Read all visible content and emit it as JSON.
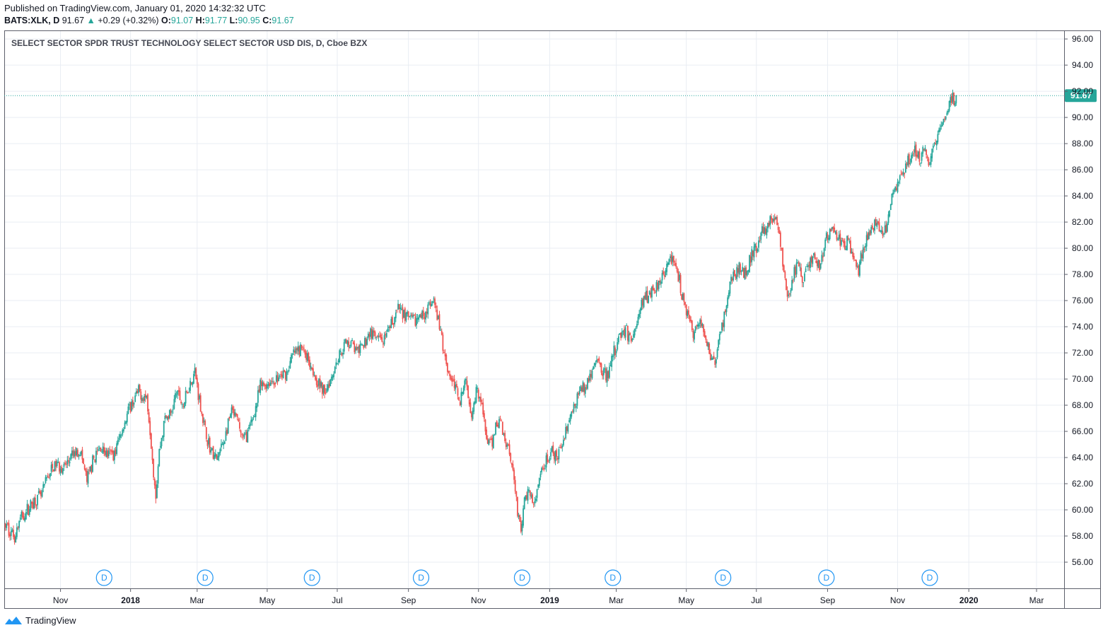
{
  "header": {
    "published": "Published on TradingView.com, January 01, 2020 14:32:32 UTC",
    "symbol": "BATS:XLK, D",
    "last": "91.67",
    "change": "+0.29 (+0.32%)",
    "o_label": "O:",
    "o_value": "91.07",
    "h_label": "H:",
    "h_value": "91.77",
    "l_label": "L:",
    "l_value": "90.95",
    "c_label": "C:",
    "c_value": "91.67"
  },
  "footer": {
    "brand": "TradingView"
  },
  "colors": {
    "up": "#26a69a",
    "down": "#ef5350",
    "grid": "#e9edf3",
    "price_line": "#26a69a",
    "dividend_marker": "#2196f3"
  },
  "chart_data": {
    "type": "candlestick",
    "title": "SELECT SECTOR SPDR TRUST TECHNOLOGY SELECT SECTOR USD DIS, D, Cboe BZX",
    "ylim": [
      54,
      96.6
    ],
    "y_ticks": [
      "96.00",
      "94.00",
      "92.00",
      "90.00",
      "88.00",
      "86.00",
      "84.00",
      "82.00",
      "80.00",
      "78.00",
      "76.00",
      "74.00",
      "72.00",
      "70.00",
      "68.00",
      "66.00",
      "64.00",
      "62.00",
      "60.00",
      "58.00",
      "56.00"
    ],
    "x_ticks": [
      {
        "label": "Nov",
        "bold": false,
        "t": 29
      },
      {
        "label": "2018",
        "bold": true,
        "t": 90
      },
      {
        "label": "Mar",
        "bold": false,
        "t": 148
      },
      {
        "label": "May",
        "bold": false,
        "t": 209
      },
      {
        "label": "Jul",
        "bold": false,
        "t": 270
      },
      {
        "label": "Sep",
        "bold": false,
        "t": 332
      },
      {
        "label": "Nov",
        "bold": false,
        "t": 393
      },
      {
        "label": "2019",
        "bold": true,
        "t": 455
      },
      {
        "label": "Mar",
        "bold": false,
        "t": 513
      },
      {
        "label": "May",
        "bold": false,
        "t": 574
      },
      {
        "label": "Jul",
        "bold": false,
        "t": 635
      },
      {
        "label": "Sep",
        "bold": false,
        "t": 697
      },
      {
        "label": "Nov",
        "bold": false,
        "t": 758
      },
      {
        "label": "2020",
        "bold": true,
        "t": 820
      },
      {
        "label": "Mar",
        "bold": false,
        "t": 879
      }
    ],
    "t_range": [
      -20,
      903
    ],
    "last_price": 91.67,
    "last_price_label": "91.67",
    "dividend_markers": [
      {
        "label": "D",
        "t": 67
      },
      {
        "label": "D",
        "t": 155
      },
      {
        "label": "D",
        "t": 248
      },
      {
        "label": "D",
        "t": 343
      },
      {
        "label": "D",
        "t": 431
      },
      {
        "label": "D",
        "t": 510
      },
      {
        "label": "D",
        "t": 606
      },
      {
        "label": "D",
        "t": 696
      },
      {
        "label": "D",
        "t": 786
      }
    ],
    "path_keypoints": [
      [
        -19,
        58.8
      ],
      [
        -15,
        58.4
      ],
      [
        -11,
        58.0
      ],
      [
        -6,
        59.3
      ],
      [
        0,
        60.0
      ],
      [
        6,
        60.7
      ],
      [
        12,
        61.0
      ],
      [
        18,
        62.6
      ],
      [
        25,
        63.5
      ],
      [
        32,
        63.2
      ],
      [
        40,
        64.2
      ],
      [
        46,
        64.6
      ],
      [
        52,
        62.2
      ],
      [
        58,
        63.9
      ],
      [
        64,
        64.8
      ],
      [
        70,
        64.2
      ],
      [
        76,
        64.3
      ],
      [
        82,
        66.0
      ],
      [
        88,
        67.5
      ],
      [
        93,
        68.4
      ],
      [
        97,
        69.0
      ],
      [
        101,
        68.7
      ],
      [
        104,
        68.6
      ],
      [
        107,
        66.2
      ],
      [
        110,
        63.0
      ],
      [
        112,
        61.2
      ],
      [
        115,
        64.5
      ],
      [
        120,
        67.0
      ],
      [
        125,
        67.3
      ],
      [
        130,
        69.0
      ],
      [
        136,
        68.0
      ],
      [
        141,
        69.5
      ],
      [
        146,
        70.6
      ],
      [
        150,
        68.4
      ],
      [
        155,
        66.0
      ],
      [
        160,
        64.5
      ],
      [
        165,
        63.8
      ],
      [
        172,
        65.5
      ],
      [
        178,
        67.5
      ],
      [
        183,
        66.8
      ],
      [
        188,
        65.4
      ],
      [
        193,
        66.0
      ],
      [
        198,
        67.5
      ],
      [
        203,
        69.4
      ],
      [
        210,
        69.7
      ],
      [
        218,
        70.0
      ],
      [
        226,
        70.5
      ],
      [
        232,
        72.0
      ],
      [
        240,
        72.3
      ],
      [
        246,
        71.4
      ],
      [
        252,
        70.0
      ],
      [
        258,
        69.0
      ],
      [
        264,
        70.0
      ],
      [
        270,
        71.5
      ],
      [
        276,
        72.6
      ],
      [
        282,
        72.9
      ],
      [
        287,
        72.0
      ],
      [
        292,
        72.4
      ],
      [
        298,
        73.6
      ],
      [
        305,
        73.0
      ],
      [
        312,
        72.9
      ],
      [
        318,
        74.4
      ],
      [
        324,
        75.4
      ],
      [
        330,
        74.8
      ],
      [
        336,
        74.4
      ],
      [
        342,
        74.7
      ],
      [
        348,
        75.3
      ],
      [
        354,
        75.8
      ],
      [
        358,
        74.5
      ],
      [
        362,
        72.5
      ],
      [
        367,
        70.5
      ],
      [
        372,
        69.5
      ],
      [
        377,
        68.5
      ],
      [
        382,
        69.8
      ],
      [
        387,
        67.5
      ],
      [
        392,
        69.5
      ],
      [
        396,
        67.8
      ],
      [
        400,
        65.5
      ],
      [
        404,
        64.8
      ],
      [
        408,
        66.5
      ],
      [
        412,
        66.9
      ],
      [
        416,
        65.4
      ],
      [
        420,
        64.6
      ],
      [
        424,
        62.5
      ],
      [
        427,
        60.0
      ],
      [
        430,
        58.4
      ],
      [
        433,
        60.5
      ],
      [
        437,
        61.8
      ],
      [
        441,
        60.0
      ],
      [
        445,
        61.8
      ],
      [
        450,
        63.3
      ],
      [
        456,
        64.4
      ],
      [
        462,
        63.8
      ],
      [
        468,
        66.0
      ],
      [
        474,
        67.2
      ],
      [
        480,
        68.9
      ],
      [
        486,
        69.4
      ],
      [
        492,
        70.8
      ],
      [
        497,
        71.3
      ],
      [
        502,
        70.5
      ],
      [
        506,
        70.3
      ],
      [
        510,
        71.8
      ],
      [
        516,
        73.4
      ],
      [
        521,
        73.7
      ],
      [
        526,
        73.0
      ],
      [
        531,
        74.3
      ],
      [
        536,
        76.0
      ],
      [
        541,
        76.5
      ],
      [
        547,
        77.0
      ],
      [
        552,
        77.8
      ],
      [
        557,
        78.7
      ],
      [
        562,
        79.2
      ],
      [
        566,
        78.4
      ],
      [
        570,
        76.5
      ],
      [
        575,
        74.8
      ],
      [
        580,
        73.5
      ],
      [
        585,
        74.3
      ],
      [
        590,
        73.6
      ],
      [
        595,
        71.8
      ],
      [
        599,
        71.2
      ],
      [
        604,
        73.6
      ],
      [
        609,
        75.8
      ],
      [
        614,
        77.8
      ],
      [
        620,
        78.4
      ],
      [
        626,
        78.2
      ],
      [
        631,
        79.5
      ],
      [
        636,
        80.3
      ],
      [
        641,
        81.3
      ],
      [
        646,
        82.0
      ],
      [
        651,
        82.4
      ],
      [
        655,
        81.0
      ],
      [
        659,
        78.0
      ],
      [
        663,
        76.0
      ],
      [
        667,
        77.8
      ],
      [
        671,
        78.8
      ],
      [
        675,
        77.5
      ],
      [
        680,
        78.8
      ],
      [
        685,
        79.3
      ],
      [
        690,
        78.5
      ],
      [
        695,
        80.5
      ],
      [
        700,
        81.4
      ],
      [
        705,
        81.0
      ],
      [
        710,
        80.2
      ],
      [
        715,
        80.5
      ],
      [
        720,
        79.2
      ],
      [
        724,
        78.3
      ],
      [
        728,
        80.0
      ],
      [
        733,
        81.3
      ],
      [
        738,
        81.8
      ],
      [
        743,
        81.2
      ],
      [
        748,
        81.4
      ],
      [
        752,
        83.5
      ],
      [
        756,
        84.7
      ],
      [
        760,
        85.3
      ],
      [
        764,
        86.2
      ],
      [
        769,
        86.8
      ],
      [
        773,
        87.5
      ],
      [
        777,
        86.8
      ],
      [
        781,
        87.5
      ],
      [
        785,
        86.5
      ],
      [
        789,
        87.7
      ],
      [
        793,
        88.6
      ],
      [
        796,
        89.7
      ],
      [
        799,
        90.3
      ],
      [
        802,
        90.9
      ],
      [
        806,
        91.4
      ],
      [
        809,
        91.67
      ]
    ]
  }
}
